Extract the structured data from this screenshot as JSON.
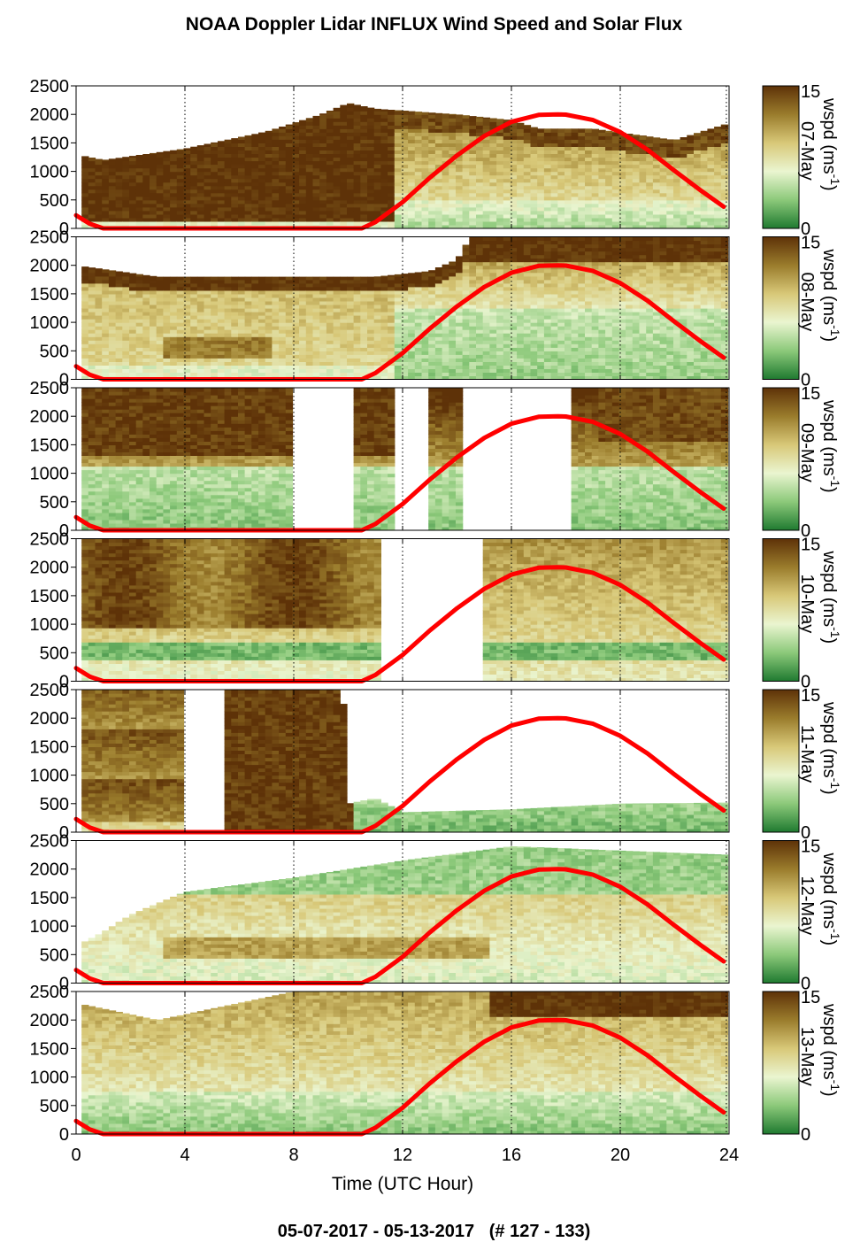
{
  "title": "NOAA Doppler Lidar INFLUX Wind Speed and Solar Flux",
  "subtitle": "05-07-2017 - 05-13-2017   (# 127 - 133)",
  "chart_data": {
    "type": "heatmap",
    "xlabel": "Time (UTC Hour)",
    "xlim": [
      0,
      24
    ],
    "x_ticks": [
      "0",
      "4",
      "8",
      "12",
      "16",
      "20",
      "24"
    ],
    "ylim": [
      0,
      2500
    ],
    "y_ticks": [
      "0",
      "500",
      "1000",
      "1500",
      "2000",
      "2500"
    ],
    "grid": "dotted vertical lines every 4 hours",
    "colorbar": {
      "label": "wspd (ms",
      "label_exponent": "-1",
      "range": [
        0,
        15
      ],
      "ticks": [
        "0",
        "15"
      ],
      "colors": [
        "#1f7a30",
        "#8cc97a",
        "#eaf5d0",
        "#d8c878",
        "#9a7c2c",
        "#5e3208"
      ]
    },
    "overlay": {
      "name": "solar flux",
      "color": "#ff0000",
      "x": [
        0,
        0.5,
        1,
        10.5,
        11,
        12,
        13,
        14,
        15,
        16,
        17,
        17.7,
        18,
        19,
        20,
        21,
        22,
        23,
        23.8
      ],
      "y": [
        230,
        80,
        0,
        0,
        110,
        460,
        890,
        1280,
        1620,
        1870,
        1990,
        2000,
        1995,
        1900,
        1690,
        1380,
        1010,
        650,
        380
      ]
    },
    "panels": [
      {
        "date": "07-May",
        "top": [
          [
            0,
            1300
          ],
          [
            1,
            1200
          ],
          [
            4,
            1400
          ],
          [
            7,
            1700
          ],
          [
            9,
            2000
          ],
          [
            10,
            2200
          ],
          [
            11,
            2100
          ],
          [
            14,
            2000
          ],
          [
            16,
            1900
          ],
          [
            17,
            1750
          ],
          [
            19,
            1750
          ],
          [
            22,
            1550
          ],
          [
            23,
            1700
          ],
          [
            24,
            1850
          ]
        ],
        "gaps": [],
        "regime": "day-shear"
      },
      {
        "date": "08-May",
        "top": [
          [
            0,
            2000
          ],
          [
            3,
            1800
          ],
          [
            8,
            1800
          ],
          [
            11,
            1800
          ],
          [
            13,
            1900
          ],
          [
            14,
            2100
          ],
          [
            14.5,
            2500
          ],
          [
            24,
            2500
          ]
        ],
        "gaps": [],
        "regime": "calm-day"
      },
      {
        "date": "09-May",
        "top": [
          [
            0,
            2500
          ],
          [
            24,
            2500
          ]
        ],
        "gaps": [
          [
            7.8,
            2.2,
            2500
          ],
          [
            11.5,
            1.3,
            2500
          ],
          [
            14,
            4,
            2500
          ]
        ],
        "regime": "breaking"
      },
      {
        "date": "10-May",
        "top": [
          [
            0,
            2500
          ],
          [
            24,
            2500
          ]
        ],
        "gaps": [
          [
            11.2,
            3.6,
            2500
          ]
        ],
        "regime": "mixed"
      },
      {
        "date": "11-May",
        "top": [
          [
            0,
            2500
          ],
          [
            3.6,
            2500
          ],
          [
            3.8,
            2500
          ],
          [
            9.8,
            2500
          ],
          [
            10,
            500
          ],
          [
            11,
            600
          ],
          [
            12,
            350
          ],
          [
            16,
            400
          ],
          [
            20,
            500
          ],
          [
            24,
            520
          ]
        ],
        "gaps": [
          [
            3.8,
            1.6,
            2500
          ]
        ],
        "regime": "evening-storm"
      },
      {
        "date": "12-May",
        "top": [
          [
            0,
            650
          ],
          [
            1,
            900
          ],
          [
            2,
            1200
          ],
          [
            4,
            1600
          ],
          [
            8,
            1850
          ],
          [
            12,
            2150
          ],
          [
            16,
            2400
          ],
          [
            24,
            2250
          ]
        ],
        "gaps": [],
        "regime": "green-day"
      },
      {
        "date": "13-May",
        "top": [
          [
            0,
            2300
          ],
          [
            3,
            2000
          ],
          [
            6,
            2300
          ],
          [
            8,
            2500
          ],
          [
            24,
            2500
          ]
        ],
        "gaps": [],
        "regime": "late-brown"
      }
    ]
  }
}
